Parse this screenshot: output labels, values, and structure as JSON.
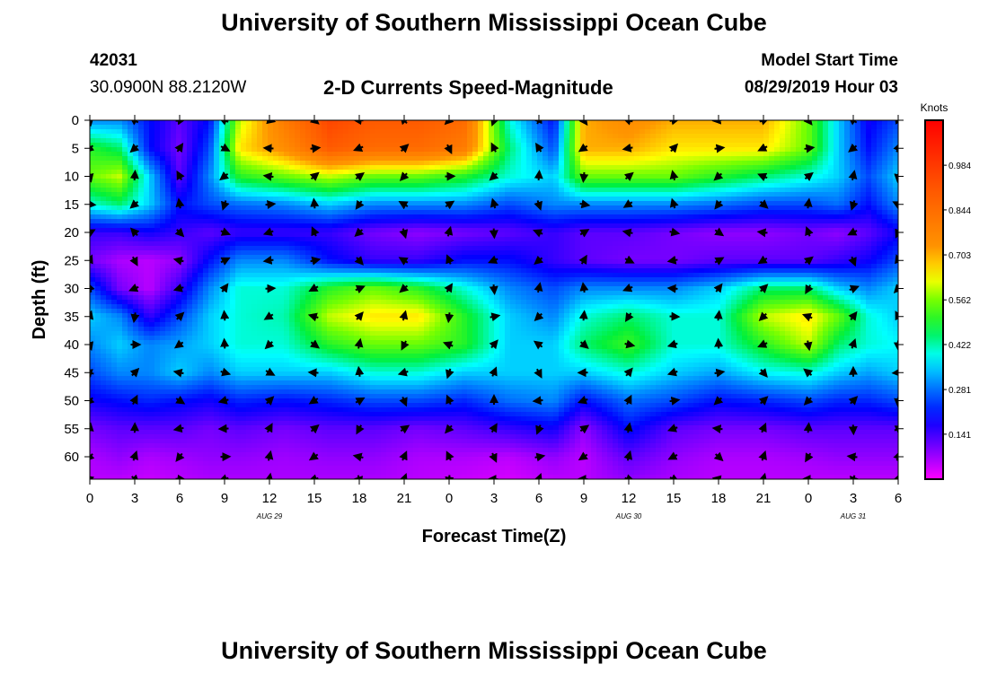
{
  "header": {
    "title": "University of Southern Mississippi Ocean Cube",
    "station_id": "42031",
    "coordinates": "30.0900N 88.2120W",
    "subtitle": "2-D Currents Speed-Magnitude",
    "model_start_label": "Model Start Time",
    "model_start_value": "08/29/2019 Hour 03"
  },
  "footer": {
    "title": "University of Southern Mississippi Ocean Cube"
  },
  "chart_data": {
    "type": "heatmap",
    "title": "2-D Currents Speed-Magnitude",
    "xlabel": "Forecast Time(Z)",
    "ylabel": "Depth (ft)",
    "x_hours_from_start": [
      0,
      54
    ],
    "x_tick_labels": [
      "0",
      "3",
      "6",
      "9",
      "12",
      "15",
      "18",
      "21",
      "0",
      "3",
      "6",
      "9",
      "12",
      "15",
      "18",
      "21",
      "0",
      "3",
      "6"
    ],
    "date_labels": [
      {
        "label": "AUG 29",
        "hour": 12
      },
      {
        "label": "AUG 30",
        "hour": 36
      },
      {
        "label": "AUG 31",
        "hour": 51
      }
    ],
    "y_ticks": [
      0,
      5,
      10,
      15,
      20,
      25,
      30,
      35,
      40,
      45,
      50,
      55,
      60
    ],
    "ylim": [
      0,
      64
    ],
    "colorbar": {
      "unit": "Knots",
      "range": [
        0,
        1.125
      ],
      "tick_labels": [
        "0.984",
        "0.844",
        "0.703",
        "0.562",
        "0.422",
        "0.281",
        "0.141"
      ],
      "tick_values": [
        0.984,
        0.844,
        0.703,
        0.562,
        0.422,
        0.281,
        0.141
      ]
    },
    "speed_profile_depths_ft": [
      0,
      5,
      10,
      15,
      20,
      25,
      30,
      35,
      40,
      45,
      50,
      55,
      60,
      64
    ],
    "speed_profiles": [
      {
        "hour": 0,
        "values": [
          0.3,
          0.5,
          0.55,
          0.4,
          0.15,
          0.1,
          0.25,
          0.35,
          0.3,
          0.25,
          0.18,
          0.1,
          0.06,
          0.05
        ]
      },
      {
        "hour": 2,
        "values": [
          0.3,
          0.45,
          0.6,
          0.45,
          0.15,
          0.06,
          0.1,
          0.3,
          0.35,
          0.3,
          0.2,
          0.12,
          0.08,
          0.05
        ]
      },
      {
        "hour": 4,
        "values": [
          0.2,
          0.2,
          0.35,
          0.35,
          0.18,
          0.05,
          0.05,
          0.15,
          0.3,
          0.3,
          0.22,
          0.12,
          0.06,
          0.04
        ]
      },
      {
        "hour": 6,
        "values": [
          0.12,
          0.1,
          0.12,
          0.2,
          0.15,
          0.08,
          0.15,
          0.25,
          0.32,
          0.35,
          0.2,
          0.12,
          0.07,
          0.05
        ]
      },
      {
        "hour": 8,
        "values": [
          0.2,
          0.25,
          0.3,
          0.25,
          0.12,
          0.2,
          0.3,
          0.35,
          0.35,
          0.3,
          0.18,
          0.1,
          0.08,
          0.06
        ]
      },
      {
        "hour": 10,
        "values": [
          0.6,
          0.65,
          0.5,
          0.28,
          0.15,
          0.3,
          0.4,
          0.4,
          0.4,
          0.35,
          0.22,
          0.12,
          0.08,
          0.06
        ]
      },
      {
        "hour": 13,
        "values": [
          0.8,
          0.75,
          0.55,
          0.3,
          0.15,
          0.3,
          0.4,
          0.42,
          0.4,
          0.35,
          0.2,
          0.1,
          0.07,
          0.06
        ]
      },
      {
        "hour": 16,
        "values": [
          0.95,
          0.9,
          0.6,
          0.35,
          0.15,
          0.2,
          0.5,
          0.6,
          0.5,
          0.35,
          0.22,
          0.12,
          0.08,
          0.06
        ]
      },
      {
        "hour": 19,
        "values": [
          0.9,
          0.85,
          0.55,
          0.3,
          0.1,
          0.15,
          0.55,
          0.65,
          0.55,
          0.4,
          0.25,
          0.12,
          0.08,
          0.06
        ]
      },
      {
        "hour": 22,
        "values": [
          0.9,
          0.85,
          0.55,
          0.3,
          0.08,
          0.15,
          0.5,
          0.65,
          0.55,
          0.4,
          0.25,
          0.1,
          0.06,
          0.05
        ]
      },
      {
        "hour": 25,
        "values": [
          0.85,
          0.8,
          0.5,
          0.3,
          0.1,
          0.2,
          0.4,
          0.5,
          0.5,
          0.35,
          0.22,
          0.12,
          0.06,
          0.04
        ]
      },
      {
        "hour": 28,
        "values": [
          0.4,
          0.45,
          0.4,
          0.25,
          0.12,
          0.2,
          0.3,
          0.35,
          0.35,
          0.35,
          0.28,
          0.15,
          0.05,
          0.03
        ]
      },
      {
        "hour": 31,
        "values": [
          0.2,
          0.25,
          0.35,
          0.3,
          0.15,
          0.15,
          0.25,
          0.3,
          0.35,
          0.35,
          0.3,
          0.18,
          0.08,
          0.05
        ]
      },
      {
        "hour": 33,
        "values": [
          0.7,
          0.7,
          0.55,
          0.3,
          0.12,
          0.12,
          0.3,
          0.4,
          0.45,
          0.35,
          0.2,
          0.08,
          0.05,
          0.05
        ]
      },
      {
        "hour": 36,
        "values": [
          0.75,
          0.7,
          0.55,
          0.3,
          0.12,
          0.1,
          0.3,
          0.45,
          0.52,
          0.4,
          0.28,
          0.2,
          0.12,
          0.08
        ]
      },
      {
        "hour": 39,
        "values": [
          0.7,
          0.65,
          0.55,
          0.3,
          0.1,
          0.1,
          0.3,
          0.4,
          0.4,
          0.35,
          0.25,
          0.12,
          0.08,
          0.06
        ]
      },
      {
        "hour": 42,
        "values": [
          0.7,
          0.65,
          0.5,
          0.28,
          0.08,
          0.12,
          0.35,
          0.4,
          0.4,
          0.32,
          0.2,
          0.1,
          0.06,
          0.05
        ]
      },
      {
        "hour": 45,
        "values": [
          0.7,
          0.65,
          0.45,
          0.25,
          0.08,
          0.12,
          0.45,
          0.6,
          0.5,
          0.38,
          0.22,
          0.1,
          0.06,
          0.05
        ]
      },
      {
        "hour": 48,
        "values": [
          0.55,
          0.55,
          0.4,
          0.25,
          0.1,
          0.12,
          0.45,
          0.65,
          0.6,
          0.4,
          0.25,
          0.12,
          0.07,
          0.05
        ]
      },
      {
        "hour": 50,
        "values": [
          0.35,
          0.35,
          0.35,
          0.28,
          0.08,
          0.15,
          0.35,
          0.55,
          0.45,
          0.35,
          0.22,
          0.12,
          0.08,
          0.05
        ]
      },
      {
        "hour": 52,
        "values": [
          0.18,
          0.2,
          0.25,
          0.2,
          0.12,
          0.18,
          0.3,
          0.4,
          0.4,
          0.32,
          0.22,
          0.12,
          0.08,
          0.05
        ]
      },
      {
        "hour": 54,
        "values": [
          0.25,
          0.3,
          0.35,
          0.3,
          0.18,
          0.25,
          0.35,
          0.35,
          0.38,
          0.35,
          0.25,
          0.12,
          0.08,
          0.05
        ]
      }
    ],
    "vector_grid": {
      "hours": [
        0,
        3,
        6,
        9,
        12,
        15,
        18,
        21,
        24,
        27,
        30,
        33,
        36,
        39,
        42,
        45,
        48,
        51,
        54
      ],
      "depths_ft": [
        0,
        5,
        10,
        15,
        20,
        25,
        30,
        35,
        40,
        45,
        50,
        55,
        60,
        64
      ],
      "direction_field": "arrows point toward current direction; computed from plotted field"
    }
  }
}
